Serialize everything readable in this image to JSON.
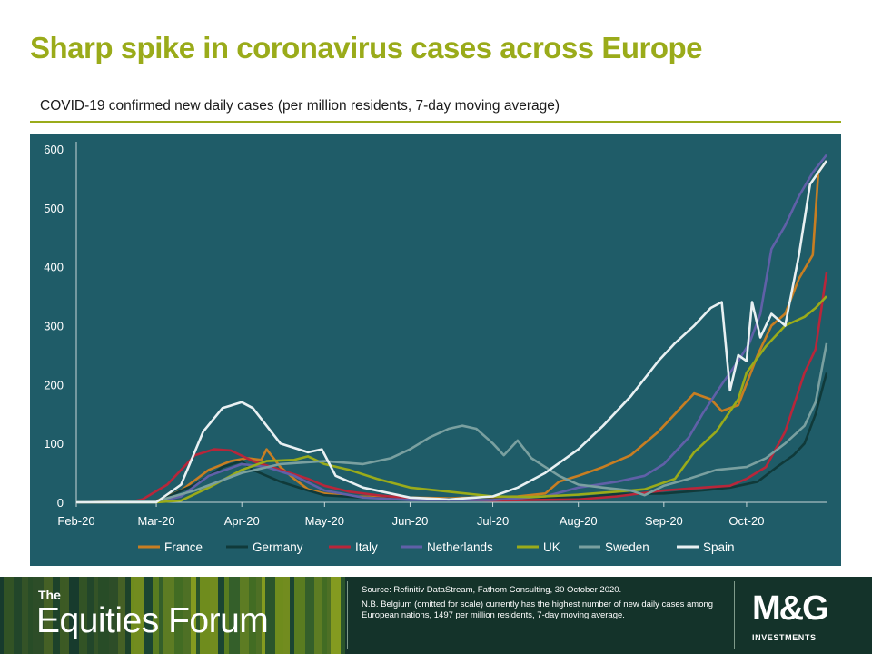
{
  "page": {
    "title": "Sharp spike in coronavirus cases across Europe",
    "subtitle": "COVID-19 confirmed new daily cases (per million residents, 7-day moving average)",
    "colors": {
      "title": "#9aab1a",
      "plot_bg": "#1f5c68",
      "footer_bg": "#14332a"
    }
  },
  "footer": {
    "brand_prefix": "The",
    "brand_name": "Equities Forum",
    "source_line": "Source: Refinitiv DataStream, Fathom Consulting, 30 October 2020.",
    "note_line": "N.B. Belgium (omitted for scale) currently has the highest number of new daily cases among European nations, 1497 per million residents, 7-day moving average.",
    "logo_text": "M&G",
    "logo_sub": "INVESTMENTS"
  },
  "chart_data": {
    "type": "line",
    "title": "Sharp spike in coronavirus cases across Europe",
    "subtitle": "COVID-19 confirmed new daily cases (per million residents, 7-day moving average)",
    "x_tick_labels": [
      "Feb-20",
      "Mar-20",
      "Apr-20",
      "May-20",
      "Jun-20",
      "Jul-20",
      "Aug-20",
      "Sep-20",
      "Oct-20"
    ],
    "y_ticks": [
      0,
      100,
      200,
      300,
      400,
      500,
      600
    ],
    "xlim": [
      "2020-02-01",
      "2020-10-30"
    ],
    "ylim": [
      0,
      600
    ],
    "grid": false,
    "legend_position": "bottom",
    "series": [
      {
        "name": "France",
        "color": "#c87e22",
        "points": [
          [
            "2020-02-01",
            0
          ],
          [
            "2020-03-01",
            2
          ],
          [
            "2020-03-10",
            20
          ],
          [
            "2020-03-20",
            55
          ],
          [
            "2020-03-28",
            70
          ],
          [
            "2020-04-03",
            75
          ],
          [
            "2020-04-08",
            72
          ],
          [
            "2020-04-10",
            90
          ],
          [
            "2020-04-15",
            60
          ],
          [
            "2020-04-20",
            40
          ],
          [
            "2020-04-25",
            22
          ],
          [
            "2020-05-01",
            15
          ],
          [
            "2020-05-10",
            10
          ],
          [
            "2020-06-01",
            8
          ],
          [
            "2020-06-15",
            7
          ],
          [
            "2020-07-01",
            9
          ],
          [
            "2020-07-10",
            10
          ],
          [
            "2020-07-20",
            15
          ],
          [
            "2020-07-25",
            35
          ],
          [
            "2020-08-01",
            45
          ],
          [
            "2020-08-10",
            60
          ],
          [
            "2020-08-20",
            80
          ],
          [
            "2020-08-30",
            120
          ],
          [
            "2020-09-05",
            150
          ],
          [
            "2020-09-12",
            185
          ],
          [
            "2020-09-18",
            175
          ],
          [
            "2020-09-22",
            155
          ],
          [
            "2020-09-28",
            165
          ],
          [
            "2020-10-05",
            250
          ],
          [
            "2020-10-10",
            300
          ],
          [
            "2020-10-15",
            320
          ],
          [
            "2020-10-20",
            380
          ],
          [
            "2020-10-25",
            420
          ],
          [
            "2020-10-27",
            560
          ],
          [
            "2020-10-30",
            580
          ]
        ]
      },
      {
        "name": "Germany",
        "color": "#103a3a",
        "points": [
          [
            "2020-02-01",
            0
          ],
          [
            "2020-03-01",
            1
          ],
          [
            "2020-03-15",
            30
          ],
          [
            "2020-03-25",
            60
          ],
          [
            "2020-04-01",
            70
          ],
          [
            "2020-04-05",
            55
          ],
          [
            "2020-04-15",
            35
          ],
          [
            "2020-04-25",
            20
          ],
          [
            "2020-05-01",
            12
          ],
          [
            "2020-05-15",
            8
          ],
          [
            "2020-06-01",
            5
          ],
          [
            "2020-06-20",
            6
          ],
          [
            "2020-07-01",
            5
          ],
          [
            "2020-07-15",
            6
          ],
          [
            "2020-08-01",
            8
          ],
          [
            "2020-08-15",
            14
          ],
          [
            "2020-09-01",
            15
          ],
          [
            "2020-09-15",
            20
          ],
          [
            "2020-09-25",
            25
          ],
          [
            "2020-10-05",
            35
          ],
          [
            "2020-10-12",
            60
          ],
          [
            "2020-10-18",
            80
          ],
          [
            "2020-10-22",
            100
          ],
          [
            "2020-10-26",
            150
          ],
          [
            "2020-10-30",
            220
          ]
        ]
      },
      {
        "name": "Italy",
        "color": "#b8263a",
        "points": [
          [
            "2020-02-01",
            0
          ],
          [
            "2020-02-20",
            0
          ],
          [
            "2020-02-25",
            5
          ],
          [
            "2020-03-05",
            30
          ],
          [
            "2020-03-15",
            80
          ],
          [
            "2020-03-22",
            90
          ],
          [
            "2020-03-28",
            88
          ],
          [
            "2020-04-05",
            70
          ],
          [
            "2020-04-15",
            55
          ],
          [
            "2020-04-25",
            40
          ],
          [
            "2020-05-01",
            28
          ],
          [
            "2020-05-10",
            18
          ],
          [
            "2020-05-20",
            12
          ],
          [
            "2020-06-01",
            7
          ],
          [
            "2020-07-01",
            3
          ],
          [
            "2020-08-01",
            5
          ],
          [
            "2020-08-15",
            10
          ],
          [
            "2020-09-01",
            20
          ],
          [
            "2020-09-15",
            25
          ],
          [
            "2020-09-25",
            28
          ],
          [
            "2020-10-01",
            40
          ],
          [
            "2020-10-08",
            60
          ],
          [
            "2020-10-15",
            120
          ],
          [
            "2020-10-22",
            220
          ],
          [
            "2020-10-26",
            260
          ],
          [
            "2020-10-30",
            390
          ]
        ]
      },
      {
        "name": "Netherlands",
        "color": "#6060a8",
        "points": [
          [
            "2020-02-01",
            0
          ],
          [
            "2020-03-01",
            0
          ],
          [
            "2020-03-10",
            10
          ],
          [
            "2020-03-20",
            45
          ],
          [
            "2020-04-01",
            65
          ],
          [
            "2020-04-10",
            60
          ],
          [
            "2020-04-20",
            45
          ],
          [
            "2020-05-01",
            20
          ],
          [
            "2020-05-15",
            8
          ],
          [
            "2020-06-01",
            4
          ],
          [
            "2020-07-01",
            4
          ],
          [
            "2020-07-20",
            10
          ],
          [
            "2020-08-01",
            25
          ],
          [
            "2020-08-15",
            35
          ],
          [
            "2020-08-25",
            45
          ],
          [
            "2020-09-01",
            65
          ],
          [
            "2020-09-10",
            110
          ],
          [
            "2020-09-15",
            150
          ],
          [
            "2020-09-22",
            200
          ],
          [
            "2020-09-28",
            240
          ],
          [
            "2020-10-02",
            270
          ],
          [
            "2020-10-06",
            320
          ],
          [
            "2020-10-10",
            430
          ],
          [
            "2020-10-15",
            470
          ],
          [
            "2020-10-20",
            520
          ],
          [
            "2020-10-25",
            560
          ],
          [
            "2020-10-30",
            590
          ]
        ]
      },
      {
        "name": "UK",
        "color": "#9aab1a",
        "points": [
          [
            "2020-02-01",
            0
          ],
          [
            "2020-03-01",
            0
          ],
          [
            "2020-03-10",
            3
          ],
          [
            "2020-03-20",
            25
          ],
          [
            "2020-04-01",
            55
          ],
          [
            "2020-04-10",
            70
          ],
          [
            "2020-04-20",
            72
          ],
          [
            "2020-04-25",
            78
          ],
          [
            "2020-05-01",
            65
          ],
          [
            "2020-05-10",
            55
          ],
          [
            "2020-05-20",
            40
          ],
          [
            "2020-06-01",
            25
          ],
          [
            "2020-06-15",
            18
          ],
          [
            "2020-07-01",
            10
          ],
          [
            "2020-07-15",
            9
          ],
          [
            "2020-08-01",
            13
          ],
          [
            "2020-08-15",
            18
          ],
          [
            "2020-08-25",
            22
          ],
          [
            "2020-09-05",
            40
          ],
          [
            "2020-09-12",
            85
          ],
          [
            "2020-09-20",
            120
          ],
          [
            "2020-09-28",
            175
          ],
          [
            "2020-10-01",
            220
          ],
          [
            "2020-10-08",
            265
          ],
          [
            "2020-10-15",
            300
          ],
          [
            "2020-10-22",
            315
          ],
          [
            "2020-10-26",
            330
          ],
          [
            "2020-10-30",
            350
          ]
        ]
      },
      {
        "name": "Sweden",
        "color": "#7aa0a0",
        "points": [
          [
            "2020-02-01",
            0
          ],
          [
            "2020-03-01",
            2
          ],
          [
            "2020-03-15",
            20
          ],
          [
            "2020-04-01",
            50
          ],
          [
            "2020-04-15",
            65
          ],
          [
            "2020-05-01",
            70
          ],
          [
            "2020-05-15",
            65
          ],
          [
            "2020-05-25",
            75
          ],
          [
            "2020-06-01",
            90
          ],
          [
            "2020-06-08",
            110
          ],
          [
            "2020-06-15",
            125
          ],
          [
            "2020-06-20",
            130
          ],
          [
            "2020-06-25",
            125
          ],
          [
            "2020-07-01",
            100
          ],
          [
            "2020-07-05",
            80
          ],
          [
            "2020-07-10",
            105
          ],
          [
            "2020-07-15",
            75
          ],
          [
            "2020-07-25",
            45
          ],
          [
            "2020-08-01",
            30
          ],
          [
            "2020-08-10",
            25
          ],
          [
            "2020-08-20",
            20
          ],
          [
            "2020-08-25",
            12
          ],
          [
            "2020-09-01",
            28
          ],
          [
            "2020-09-10",
            40
          ],
          [
            "2020-09-20",
            55
          ],
          [
            "2020-10-01",
            60
          ],
          [
            "2020-10-08",
            75
          ],
          [
            "2020-10-15",
            100
          ],
          [
            "2020-10-22",
            130
          ],
          [
            "2020-10-26",
            170
          ],
          [
            "2020-10-30",
            270
          ]
        ]
      },
      {
        "name": "Spain",
        "color": "#e8f0f2",
        "points": [
          [
            "2020-02-01",
            0
          ],
          [
            "2020-03-01",
            0
          ],
          [
            "2020-03-10",
            30
          ],
          [
            "2020-03-18",
            120
          ],
          [
            "2020-03-25",
            160
          ],
          [
            "2020-04-01",
            170
          ],
          [
            "2020-04-05",
            160
          ],
          [
            "2020-04-15",
            100
          ],
          [
            "2020-04-25",
            85
          ],
          [
            "2020-04-30",
            90
          ],
          [
            "2020-05-05",
            45
          ],
          [
            "2020-05-15",
            25
          ],
          [
            "2020-05-25",
            15
          ],
          [
            "2020-06-01",
            8
          ],
          [
            "2020-06-15",
            5
          ],
          [
            "2020-07-01",
            10
          ],
          [
            "2020-07-10",
            25
          ],
          [
            "2020-07-20",
            50
          ],
          [
            "2020-08-01",
            90
          ],
          [
            "2020-08-10",
            130
          ],
          [
            "2020-08-20",
            180
          ],
          [
            "2020-08-30",
            240
          ],
          [
            "2020-09-05",
            270
          ],
          [
            "2020-09-12",
            300
          ],
          [
            "2020-09-18",
            330
          ],
          [
            "2020-09-22",
            340
          ],
          [
            "2020-09-25",
            190
          ],
          [
            "2020-09-28",
            250
          ],
          [
            "2020-10-01",
            240
          ],
          [
            "2020-10-03",
            340
          ],
          [
            "2020-10-06",
            280
          ],
          [
            "2020-10-10",
            320
          ],
          [
            "2020-10-15",
            300
          ],
          [
            "2020-10-20",
            420
          ],
          [
            "2020-10-24",
            540
          ],
          [
            "2020-10-27",
            560
          ],
          [
            "2020-10-30",
            580
          ]
        ]
      }
    ]
  }
}
